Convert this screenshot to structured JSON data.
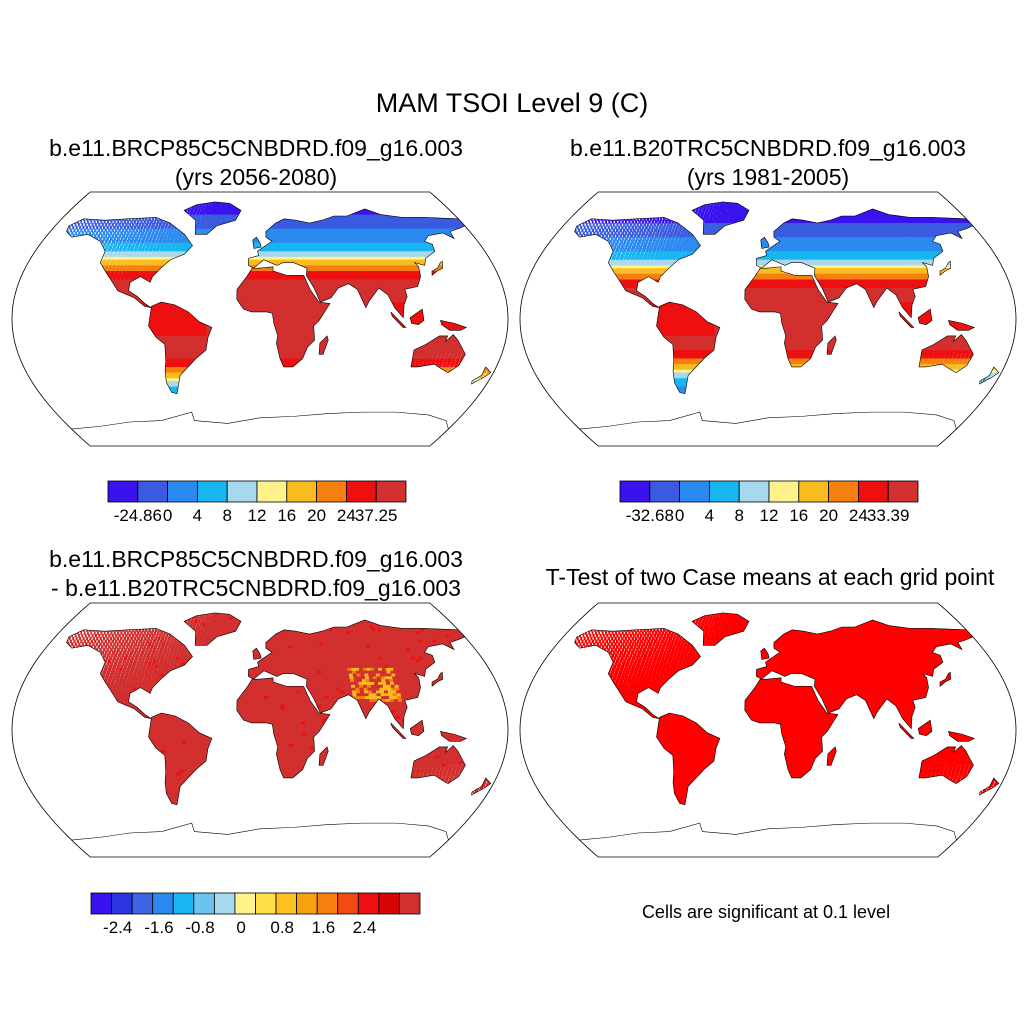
{
  "title": "MAM TSOI Level 9 (C)",
  "panels": [
    {
      "title_line1": "b.e11.BRCP85C5CNBDRD.f09_g16.003",
      "title_line2": "(yrs 2056-2080)",
      "scheme": "warm",
      "colorbar": {
        "colors": [
          "#3a12f0",
          "#3a5ae0",
          "#2a8af0",
          "#18b6f0",
          "#a8d8ee",
          "#fff28a",
          "#f8bc1e",
          "#f57f10",
          "#ee1010",
          "#d22f2f"
        ],
        "labels": [
          "-24.86",
          "0",
          "4",
          "8",
          "12",
          "16",
          "20",
          "24",
          "37.25"
        ]
      }
    },
    {
      "title_line1": "b.e11.B20TRC5CNBDRD.f09_g16.003",
      "title_line2": "(yrs 1981-2005)",
      "scheme": "cool",
      "colorbar": {
        "colors": [
          "#3a12f0",
          "#3a5ae0",
          "#2a8af0",
          "#18b6f0",
          "#a8d8ee",
          "#fff28a",
          "#f8bc1e",
          "#f57f10",
          "#ee1010",
          "#d22f2f"
        ],
        "labels": [
          "-32.68",
          "0",
          "4",
          "8",
          "12",
          "16",
          "20",
          "24",
          "33.39"
        ]
      }
    },
    {
      "title_line1": "b.e11.BRCP85C5CNBDRD.f09_g16.003",
      "title_line2": "- b.e11.B20TRC5CNBDRD.f09_g16.003",
      "scheme": "diff",
      "colorbar": {
        "colors": [
          "#3a12f0",
          "#2a34e0",
          "#3c64e4",
          "#2a8af0",
          "#18b6f0",
          "#6ac4ee",
          "#a8d8ee",
          "#fff28a",
          "#ffe04a",
          "#fcc020",
          "#f8a010",
          "#f57f10",
          "#f24a10",
          "#ee1010",
          "#d60606",
          "#d22f2f"
        ],
        "labels": [
          "-2.4",
          "-1.6",
          "-0.8",
          "0",
          "0.8",
          "1.6",
          "2.4"
        ]
      }
    },
    {
      "title_line1": "T-Test of two Case means at each grid point",
      "scheme": "ttest",
      "note": "Cells are significant at 0.1 level"
    }
  ]
}
